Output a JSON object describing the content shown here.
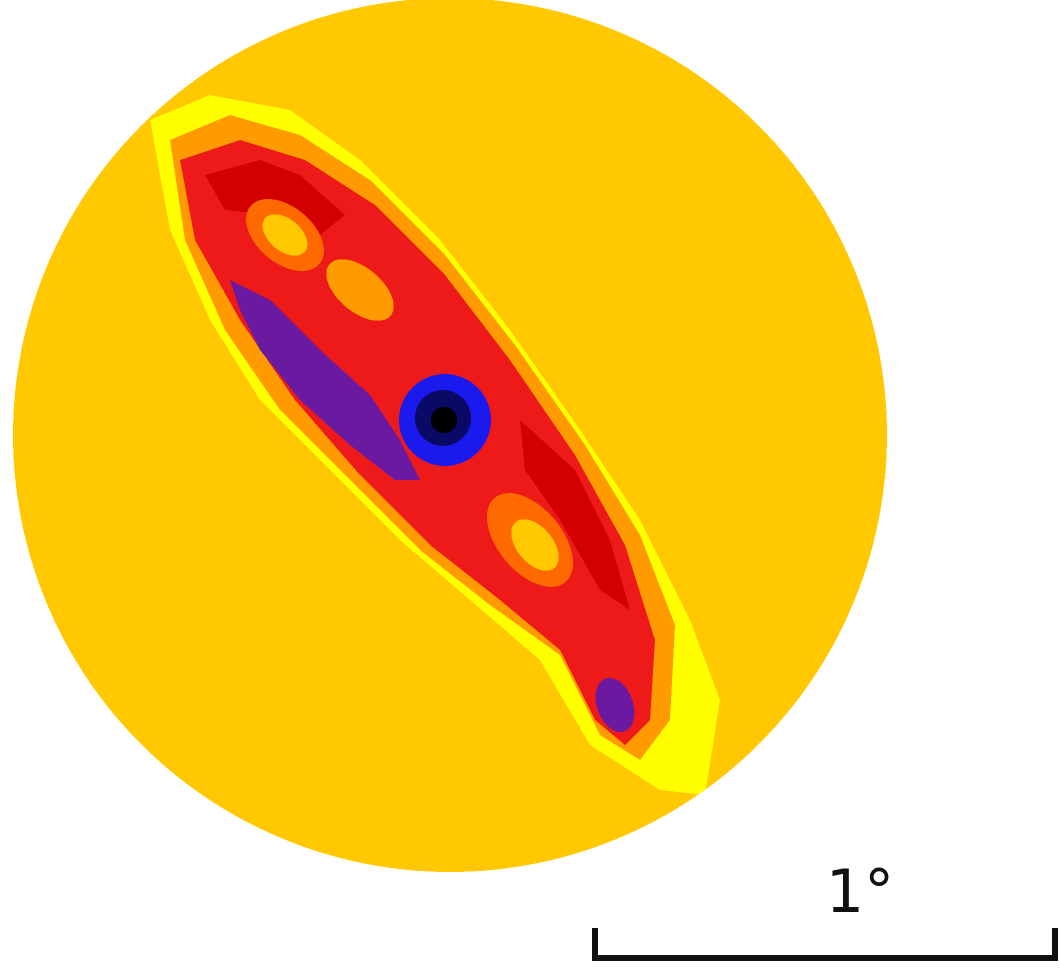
{
  "image": {
    "subject": "intensity map",
    "colors": {
      "background": "#fefefe",
      "disk_fill": "#ffc800",
      "halo": "#ffff00",
      "edge_orange": "#ff9a00",
      "mid_orange": "#ff6a00",
      "red": "#ee1a1a",
      "deep_red": "#d40000",
      "purple": "#6a1aa0",
      "blue": "#1a1aee",
      "navy": "#0a0a66",
      "black": "#000000",
      "scale_bar": "#111111"
    }
  },
  "scale_bar": {
    "label": "1°"
  }
}
